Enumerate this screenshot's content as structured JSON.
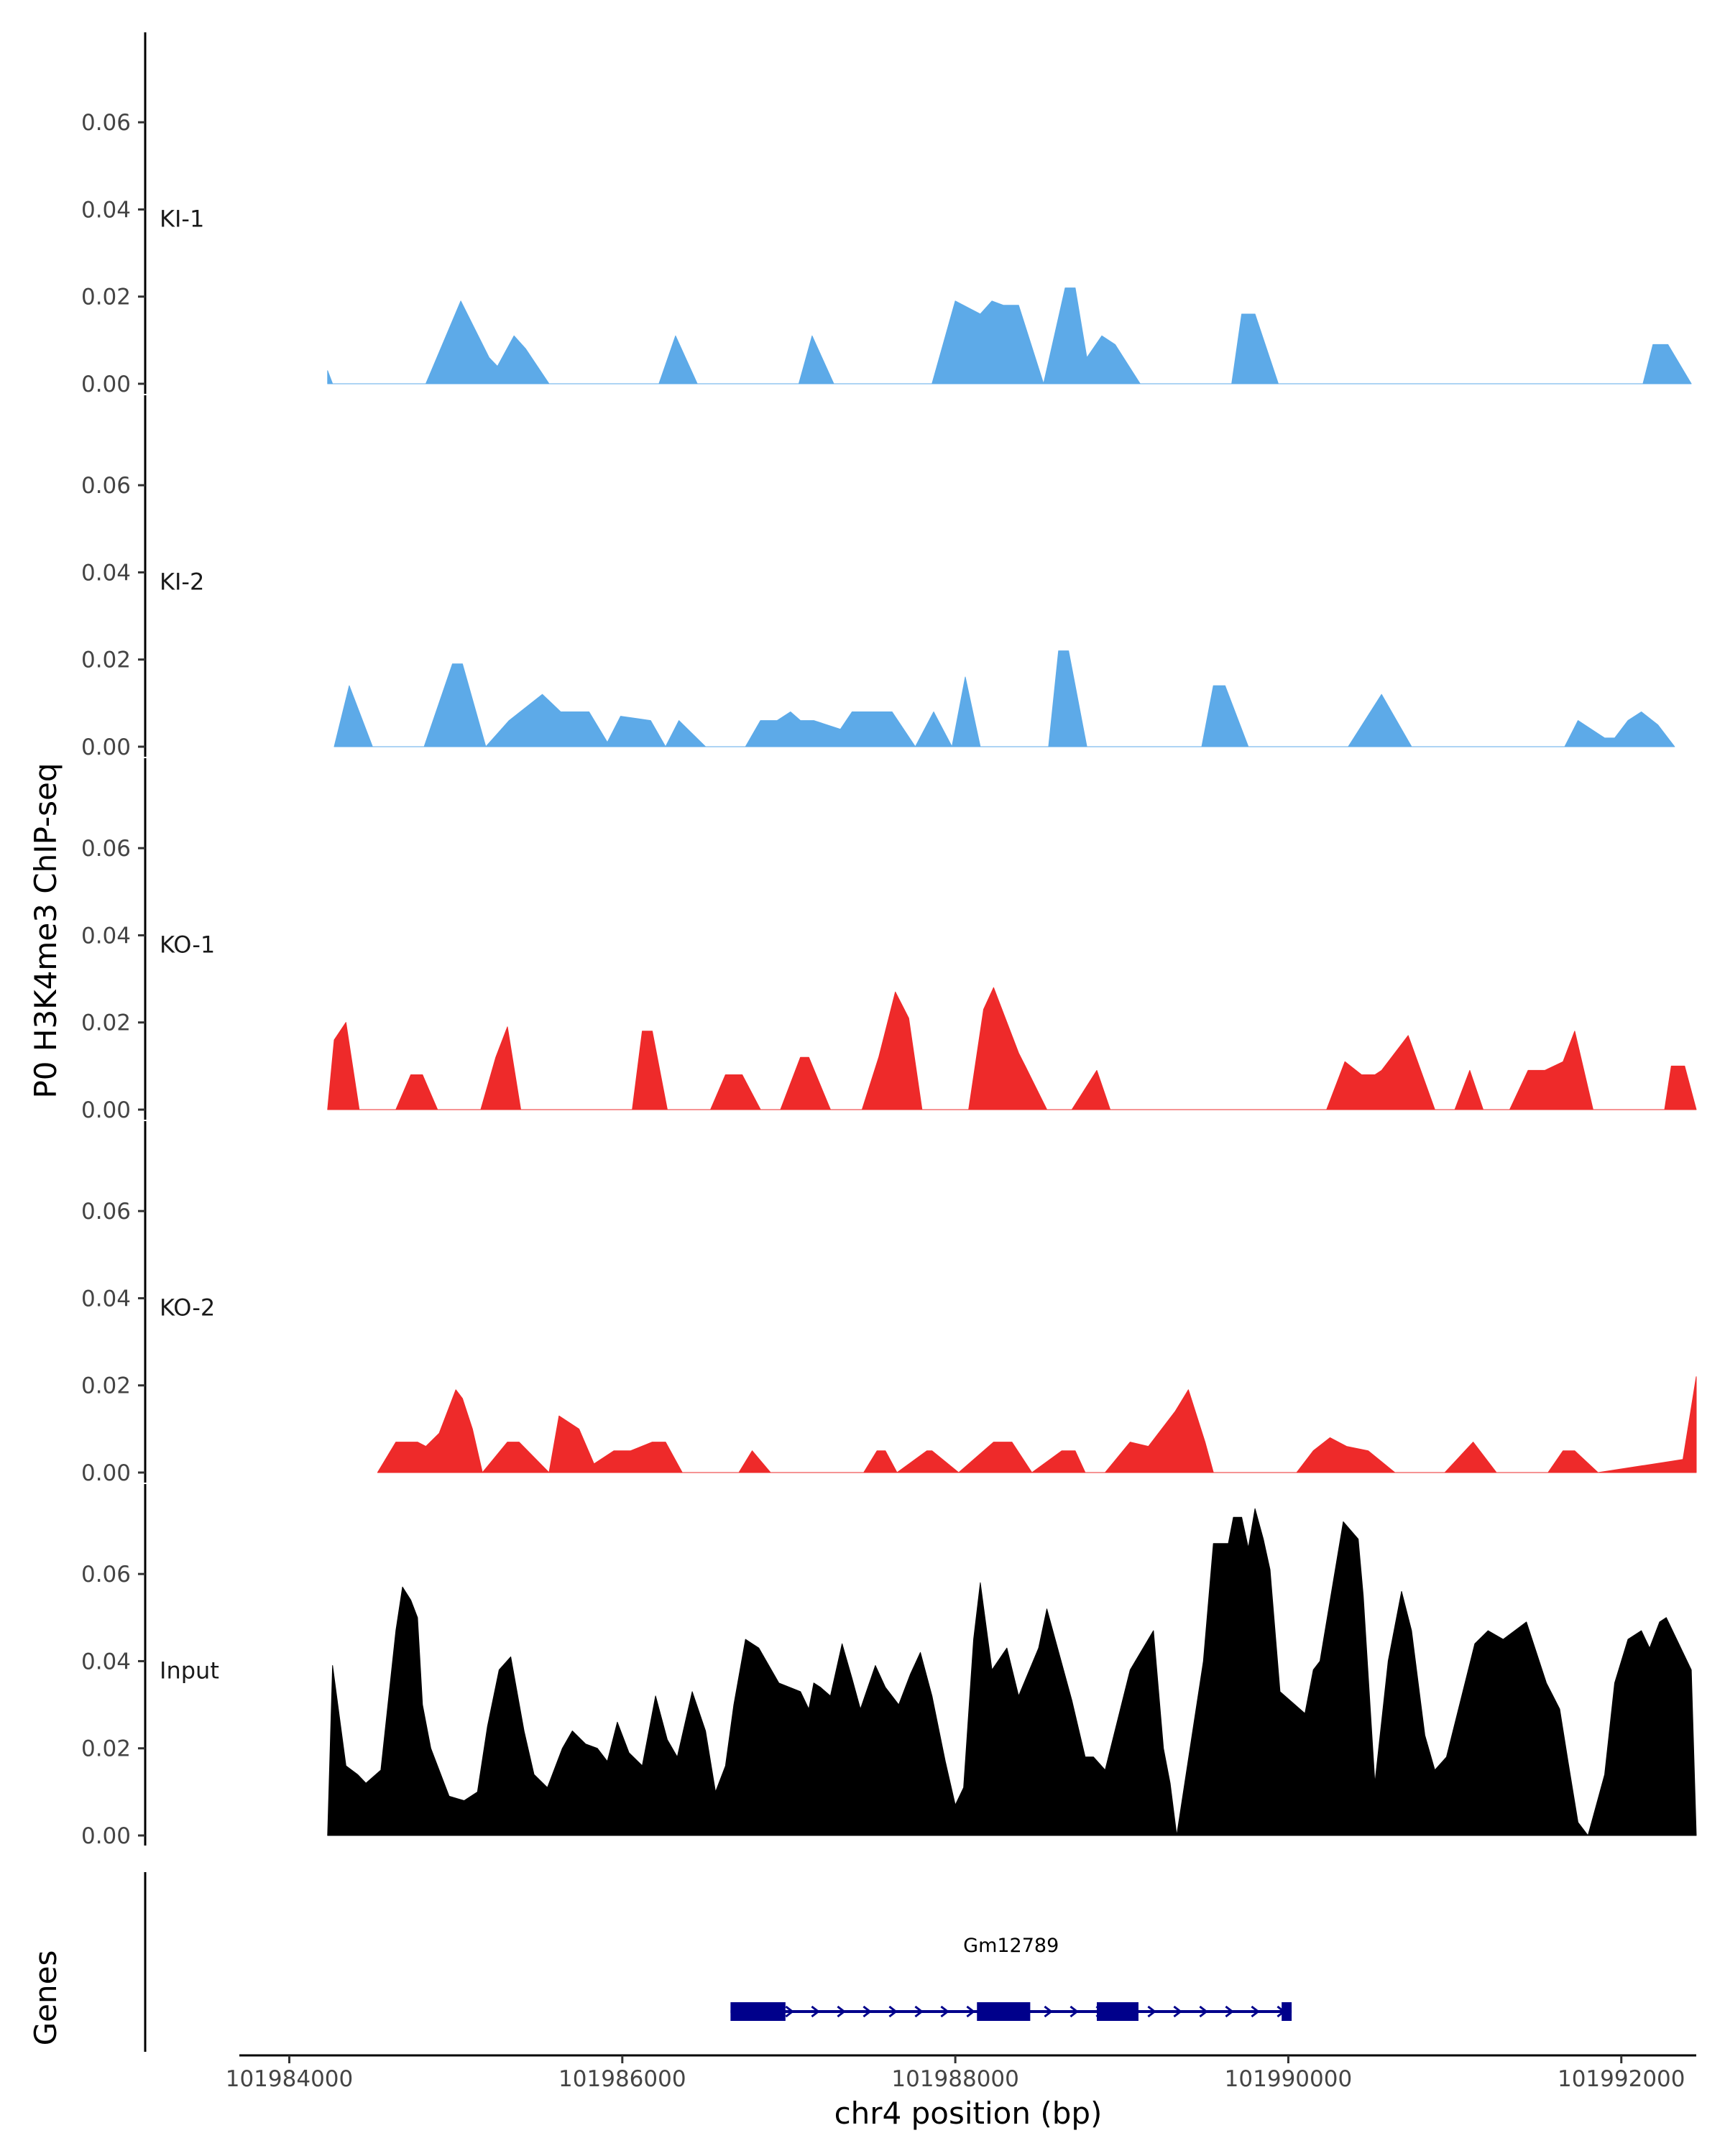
{
  "chart_data": {
    "type": "area",
    "y_axis_title": "P0 H3K4me3 ChIP-seq",
    "x_axis_title": "chr4 position (bp)",
    "x_range": [
      101983700,
      101992450
    ],
    "x_ticks": [
      101984000,
      101986000,
      101988000,
      101990000,
      101992000
    ],
    "x_tick_labels": [
      "101984000",
      "101986000",
      "101988000",
      "101990000",
      "101992000"
    ],
    "y_range": [
      0,
      0.078
    ],
    "y_ticks": [
      0,
      0.02,
      0.04,
      0.06
    ],
    "y_tick_labels": [
      "0.00",
      "0.02",
      "0.04",
      "0.06"
    ],
    "tracks": [
      {
        "name": "KI-1",
        "color": "#5DAAE8",
        "x": [
          101984230,
          101984260,
          101984290,
          101984820,
          101985030,
          101985200,
          101985250,
          101985350,
          101985420,
          101985560,
          101986220,
          101986320,
          101986450,
          101987060,
          101987140,
          101987270,
          101987860,
          101988000,
          101988150,
          101988220,
          101988290,
          101988380,
          101988530,
          101988660,
          101988720,
          101988790,
          101988880,
          101988960,
          101989110,
          101989660,
          101989720,
          101989800,
          101989940,
          101992130,
          101992190,
          101992280,
          101992420
        ],
        "y": [
          0.003,
          0,
          0,
          0,
          0.019,
          0.006,
          0.004,
          0.011,
          0.008,
          0,
          0,
          0.011,
          0,
          0,
          0.011,
          0,
          0,
          0.019,
          0.016,
          0.019,
          0.018,
          0.018,
          0,
          0.022,
          0.022,
          0.006,
          0.011,
          0.009,
          0,
          0,
          0.016,
          0.016,
          0,
          0,
          0.009,
          0.009,
          0
        ]
      },
      {
        "name": "KI-2",
        "color": "#5DAAE8",
        "x": [
          101984270,
          101984360,
          101984440,
          101984500,
          101984810,
          101984980,
          101985040,
          101985180,
          101985320,
          101985520,
          101985630,
          101985800,
          101985910,
          101985990,
          101986170,
          101986260,
          101986340,
          101986500,
          101986740,
          101986830,
          101986930,
          101987010,
          101987070,
          101987150,
          101987310,
          101987380,
          101987620,
          101987760,
          101987870,
          101987980,
          101988060,
          101988150,
          101988560,
          101988620,
          101988680,
          101988790,
          101989480,
          101989550,
          101989620,
          101989760,
          101990360,
          101990560,
          101990740,
          101991660,
          101991740,
          101991900,
          101991960,
          101992040,
          101992120,
          101992220,
          101992320
        ],
        "y": [
          0,
          0.014,
          0.006,
          0,
          0,
          0.019,
          0.019,
          0,
          0.006,
          0.012,
          0.008,
          0.008,
          0.001,
          0.007,
          0.006,
          0,
          0.006,
          0,
          0,
          0.006,
          0.006,
          0.008,
          0.006,
          0.006,
          0.004,
          0.008,
          0.008,
          0,
          0.008,
          0,
          0.016,
          0,
          0,
          0.022,
          0.022,
          0,
          0,
          0.014,
          0.014,
          0,
          0,
          0.012,
          0,
          0,
          0.006,
          0.002,
          0.002,
          0.006,
          0.008,
          0.005,
          0
        ]
      },
      {
        "name": "KO-1",
        "color": "#EE2A2A",
        "x": [
          101984230,
          101984270,
          101984340,
          101984420,
          101984640,
          101984730,
          101984800,
          101984890,
          101985150,
          101985240,
          101985310,
          101985390,
          101986060,
          101986120,
          101986180,
          101986270,
          101986530,
          101986620,
          101986720,
          101986830,
          101986950,
          101987070,
          101987120,
          101987250,
          101987440,
          101987540,
          101987640,
          101987720,
          101987800,
          101988080,
          101988170,
          101988230,
          101988380,
          101988420,
          101988550,
          101988700,
          101988850,
          101988930,
          101990230,
          101990340,
          101990440,
          101990520,
          101990560,
          101990720,
          101990880,
          101991000,
          101991090,
          101991170,
          101991330,
          101991440,
          101991540,
          101991650,
          101991720,
          101991830,
          101992260,
          101992300,
          101992380,
          101992450
        ],
        "y": [
          0,
          0.016,
          0.02,
          0,
          0,
          0.008,
          0.008,
          0,
          0,
          0.012,
          0.019,
          0,
          0,
          0.018,
          0.018,
          0,
          0,
          0.008,
          0.008,
          0,
          0,
          0.012,
          0.012,
          0,
          0,
          0.012,
          0.027,
          0.021,
          0,
          0,
          0.023,
          0.028,
          0.013,
          0.01,
          0,
          0,
          0.009,
          0,
          0,
          0.011,
          0.008,
          0.008,
          0.009,
          0.017,
          0,
          0,
          0.009,
          0,
          0,
          0.009,
          0.009,
          0.011,
          0.018,
          0,
          0,
          0.01,
          0.01,
          0
        ]
      },
      {
        "name": "KO-2",
        "color": "#EE2A2A",
        "x": [
          101984530,
          101984640,
          101984770,
          101984820,
          101984900,
          101985000,
          101985040,
          101985100,
          101985160,
          101985310,
          101985380,
          101985560,
          101985620,
          101985740,
          101985830,
          101985950,
          101986050,
          101986180,
          101986260,
          101986360,
          101986700,
          101986780,
          101986890,
          101987450,
          101987530,
          101987580,
          101987650,
          101987830,
          101987860,
          101988020,
          101988230,
          101988340,
          101988460,
          101988640,
          101988720,
          101988780,
          101988900,
          101989050,
          101989160,
          101989320,
          101989400,
          101989500,
          101989550,
          101990050,
          101990150,
          101990250,
          101990350,
          101990480,
          101990640,
          101990940,
          101991110,
          101991250,
          101991560,
          101991650,
          101991720,
          101991860,
          101992370,
          101992450
        ],
        "y": [
          0,
          0.007,
          0.007,
          0.006,
          0.009,
          0.019,
          0.017,
          0.01,
          0,
          0.007,
          0.007,
          0,
          0.013,
          0.01,
          0.002,
          0.005,
          0.005,
          0.007,
          0.007,
          0,
          0,
          0.005,
          0,
          0,
          0.005,
          0.005,
          0,
          0.005,
          0.005,
          0,
          0.007,
          0.007,
          0,
          0.005,
          0.005,
          0,
          0,
          0.007,
          0.006,
          0.014,
          0.019,
          0.007,
          0,
          0,
          0.005,
          0.008,
          0.006,
          0.005,
          0,
          0,
          0.007,
          0,
          0,
          0.005,
          0.005,
          0,
          0.003,
          0.022
        ]
      },
      {
        "name": "Input",
        "color": "#000000",
        "x": [
          101984230,
          101984260,
          101984340,
          101984410,
          101984460,
          101984550,
          101984640,
          101984680,
          101984730,
          101984770,
          101984800,
          101984850,
          101984960,
          101985050,
          101985130,
          101985190,
          101985260,
          101985330,
          101985410,
          101985470,
          101985550,
          101985640,
          101985700,
          101985780,
          101985850,
          101985910,
          101985970,
          101986040,
          101986120,
          101986200,
          101986270,
          101986330,
          101986420,
          101986500,
          101986560,
          101986620,
          101986670,
          101986740,
          101986820,
          101986940,
          101987070,
          101987120,
          101987150,
          101987190,
          101987250,
          101987320,
          101987380,
          101987430,
          101987520,
          101987580,
          101987660,
          101987730,
          101987790,
          101987860,
          101987940,
          101988000,
          101988050,
          101988110,
          101988150,
          101988220,
          101988310,
          101988380,
          101988500,
          101988550,
          101988700,
          101988780,
          101988830,
          101988900,
          101989050,
          101989190,
          101989250,
          101989290,
          101989330,
          101989490,
          101989550,
          101989640,
          101989670,
          101989720,
          101989760,
          101989800,
          101989850,
          101989890,
          101989950,
          101990100,
          101990150,
          101990190,
          101990330,
          101990420,
          101990450,
          101990520,
          101990600,
          101990680,
          101990740,
          101990820,
          101990880,
          101990950,
          101991120,
          101991200,
          101991290,
          101991430,
          101991550,
          101991630,
          101991680,
          101991740,
          101991800,
          101991900,
          101991960,
          101992040,
          101992120,
          101992170,
          101992230,
          101992270,
          101992370,
          101992420,
          101992450
        ],
        "y": [
          0,
          0.039,
          0.016,
          0.014,
          0.012,
          0.015,
          0.047,
          0.057,
          0.054,
          0.05,
          0.03,
          0.02,
          0.009,
          0.008,
          0.01,
          0.025,
          0.038,
          0.041,
          0.024,
          0.014,
          0.011,
          0.02,
          0.024,
          0.021,
          0.02,
          0.017,
          0.026,
          0.019,
          0.016,
          0.032,
          0.022,
          0.018,
          0.033,
          0.024,
          0.01,
          0.016,
          0.03,
          0.045,
          0.043,
          0.035,
          0.033,
          0.029,
          0.035,
          0.034,
          0.032,
          0.044,
          0.036,
          0.029,
          0.039,
          0.034,
          0.03,
          0.037,
          0.042,
          0.032,
          0.017,
          0.007,
          0.011,
          0.045,
          0.058,
          0.038,
          0.043,
          0.032,
          0.043,
          0.052,
          0.031,
          0.018,
          0.018,
          0.015,
          0.038,
          0.047,
          0.02,
          0.012,
          0,
          0.04,
          0.067,
          0.067,
          0.073,
          0.073,
          0.066,
          0.075,
          0.068,
          0.061,
          0.033,
          0.028,
          0.038,
          0.04,
          0.072,
          0.068,
          0.055,
          0.012,
          0.04,
          0.056,
          0.047,
          0.023,
          0.015,
          0.018,
          0.044,
          0.047,
          0.045,
          0.049,
          0.035,
          0.029,
          0.017,
          0.003,
          0,
          0.014,
          0.035,
          0.045,
          0.047,
          0.043,
          0.049,
          0.05,
          0.042,
          0.038,
          0
        ]
      }
    ],
    "genes": [
      {
        "name": "Gm12789",
        "start": 101986650,
        "end": 101990020,
        "exons": [
          [
            101986650,
            101986980
          ],
          [
            101988130,
            101988450
          ],
          [
            101988850,
            101989100
          ],
          [
            101989960,
            101990020
          ]
        ],
        "strand": "+",
        "color": "#00008B"
      }
    ],
    "genes_panel_title": "Genes"
  }
}
